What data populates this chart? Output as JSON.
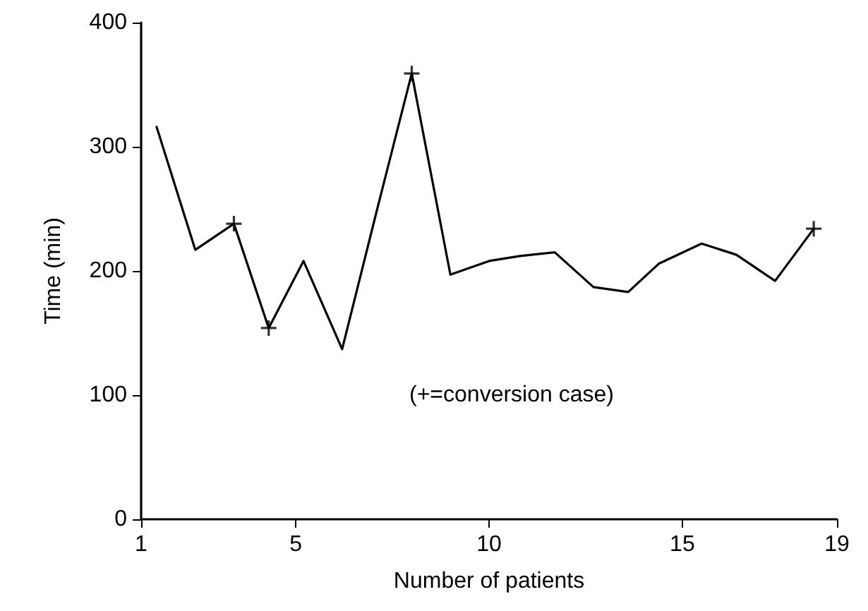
{
  "chart_data": {
    "type": "line",
    "xlabel": "Number of patients",
    "ylabel": "Time (min)",
    "xlim": [
      1,
      19
    ],
    "xticks": [
      1,
      5,
      10,
      15,
      19
    ],
    "ylim": [
      0,
      400
    ],
    "yticks": [
      0,
      100,
      200,
      300,
      400
    ],
    "grid": false,
    "series": [
      {
        "color": "#000000",
        "marker": "none",
        "x": [
          1.4,
          2.4,
          3.4,
          4.3,
          5.2,
          6.2,
          7.1,
          8.0,
          9.0,
          10.0,
          10.8,
          11.7,
          12.7,
          13.6,
          14.4,
          15.5,
          16.4,
          17.4,
          18.4
        ],
        "values": [
          316,
          217,
          238,
          154,
          208,
          137,
          249,
          359,
          197,
          208,
          212,
          215,
          187,
          183,
          206,
          222,
          213,
          192,
          234
        ]
      },
      {
        "type": "scatter",
        "color": "#000000",
        "marker": "cross",
        "x": [
          3.4,
          4.3,
          8.0,
          18.4
        ],
        "values": [
          238,
          154,
          359,
          234
        ]
      }
    ],
    "annotations": [
      "(+=conversion case)"
    ]
  }
}
